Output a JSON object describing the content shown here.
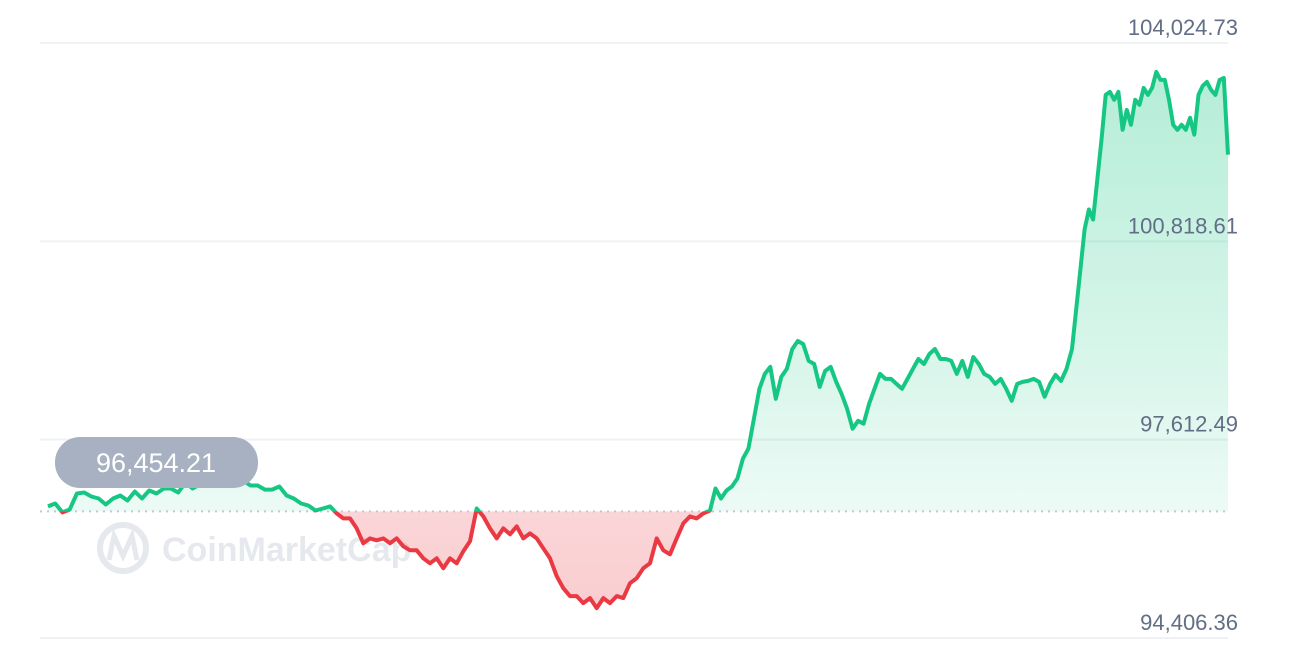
{
  "chart_data": {
    "type": "area",
    "title": "",
    "xlabel": "",
    "ylabel": "",
    "y_ticks": [
      "104,024.73",
      "100,818.61",
      "97,612.49",
      "94,406.36"
    ],
    "y_tick_values": [
      104024.73,
      100818.61,
      97612.49,
      94406.36
    ],
    "ylim": [
      94406.36,
      104024.73
    ],
    "grid": true,
    "baseline": {
      "value": 96454.21,
      "label": "96,454.21",
      "style": "dotted"
    },
    "colors": {
      "up": "#16c784",
      "down": "#ea3943",
      "badge": "#a7b1c2",
      "grid": "#eff2f5",
      "label": "#616e85"
    },
    "watermark": "CoinMarketCap",
    "series": [
      {
        "values": [
          96533,
          96581,
          96436,
          96484,
          96742,
          96758,
          96694,
          96662,
          96565,
          96662,
          96710,
          96629,
          96774,
          96662,
          96790,
          96742,
          96823,
          96823,
          96758,
          96919,
          96823,
          96887,
          96871,
          96935,
          96919,
          96919,
          97032,
          96951,
          96871,
          96871,
          96806,
          96806,
          96855,
          96710,
          96662,
          96581,
          96549,
          96468,
          96500,
          96533,
          96420,
          96339,
          96339,
          96178,
          95937,
          96017,
          95985,
          96017,
          95937,
          96017,
          95888,
          95824,
          95824,
          95695,
          95614,
          95695,
          95534,
          95695,
          95614,
          95808,
          95969,
          96500,
          96372,
          96178,
          96017,
          96178,
          96082,
          96210,
          96017,
          96098,
          96017,
          95856,
          95695,
          95405,
          95212,
          95083,
          95083,
          94970,
          95051,
          94889,
          95051,
          94970,
          95083,
          95051,
          95292,
          95373,
          95534,
          95614,
          96017,
          95824,
          95759,
          96017,
          96259,
          96372,
          96339,
          96420,
          96468,
          96823,
          96662,
          96790,
          96855,
          96984,
          97306,
          97467,
          97950,
          98434,
          98675,
          98788,
          98273,
          98627,
          98756,
          99078,
          99207,
          99159,
          98885,
          98836,
          98466,
          98724,
          98788,
          98546,
          98353,
          98111,
          97789,
          97918,
          97870,
          98192,
          98434,
          98675,
          98595,
          98595,
          98514,
          98434,
          98595,
          98756,
          98917,
          98836,
          98997,
          99078,
          98917,
          98917,
          98885,
          98675,
          98885,
          98627,
          98949,
          98836,
          98675,
          98627,
          98514,
          98595,
          98434,
          98240,
          98514,
          98546,
          98562,
          98595,
          98546,
          98305,
          98514,
          98659,
          98562,
          98756,
          99078,
          99722,
          100367,
          101011,
          101333,
          101172,
          101817,
          102461,
          103186,
          103234,
          103106,
          103234,
          102622,
          102944,
          102703,
          103106,
          103025,
          103299,
          103186,
          103299,
          103557,
          103428,
          103428,
          103106,
          102703,
          102622,
          102703,
          102622,
          102816,
          102542,
          103186,
          103331,
          103396,
          103267,
          103186,
          103428,
          103460,
          102219
        ]
      }
    ]
  }
}
